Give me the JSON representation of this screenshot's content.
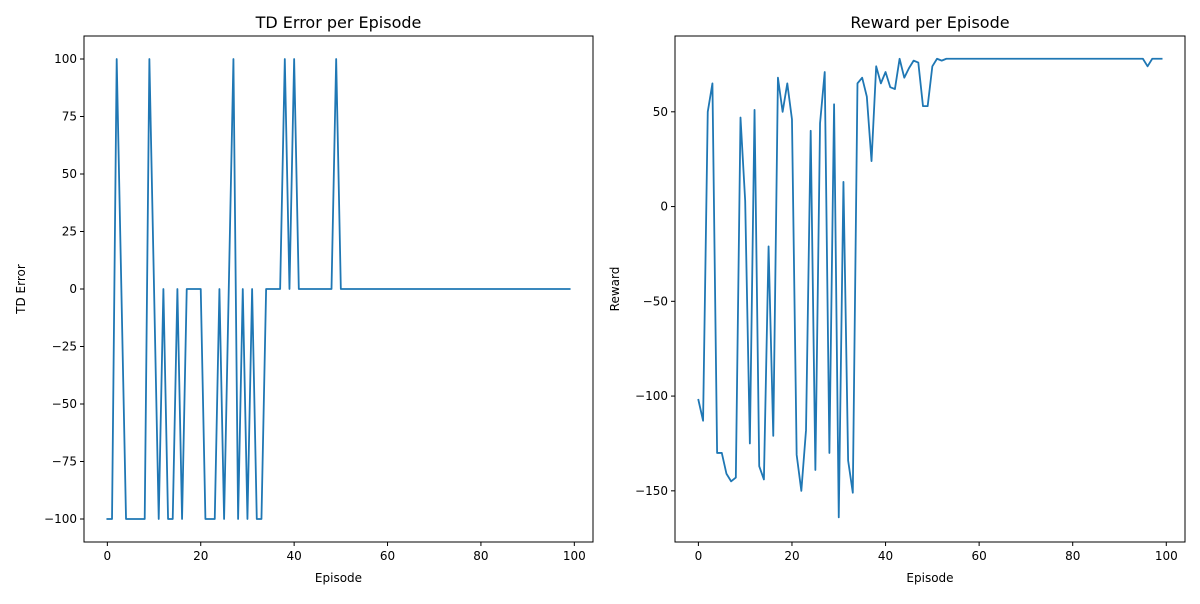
{
  "chart_data": [
    {
      "type": "line",
      "title": "TD Error per Episode",
      "xlabel": "Episode",
      "ylabel": "TD Error",
      "xlim": [
        -5,
        104
      ],
      "ylim": [
        -110,
        110
      ],
      "xticks": [
        0,
        20,
        40,
        60,
        80,
        100
      ],
      "yticks": [
        -100,
        -75,
        -50,
        -25,
        0,
        25,
        50,
        75,
        100
      ],
      "grid": false,
      "color": "#1f77b4",
      "series": [
        {
          "x": [
            0,
            1,
            2,
            3,
            4,
            5,
            6,
            7,
            8,
            9,
            10,
            11,
            12,
            13,
            14,
            15,
            16,
            17,
            18,
            19,
            20,
            21,
            22,
            23,
            24,
            25,
            26,
            27,
            28,
            29,
            30,
            31,
            32,
            33,
            34,
            35,
            36,
            37,
            38,
            39,
            40,
            41,
            42,
            43,
            44,
            45,
            46,
            47,
            48,
            49,
            50,
            51,
            52,
            53,
            54,
            55,
            56,
            57,
            58,
            59,
            60,
            61,
            62,
            63,
            64,
            65,
            66,
            67,
            68,
            69,
            70,
            71,
            72,
            73,
            74,
            75,
            76,
            77,
            78,
            79,
            80,
            81,
            82,
            83,
            84,
            85,
            86,
            87,
            88,
            89,
            90,
            91,
            92,
            93,
            94,
            95,
            96,
            97,
            98,
            99
          ],
          "y": [
            -100,
            -100,
            100,
            0,
            -100,
            -100,
            -100,
            -100,
            -100,
            100,
            0,
            -100,
            0,
            -100,
            -100,
            0,
            -100,
            0,
            0,
            0,
            0,
            -100,
            -100,
            -100,
            0,
            -100,
            0,
            100,
            -100,
            0,
            -100,
            0,
            -100,
            -100,
            0,
            0,
            0,
            0,
            100,
            0,
            100,
            0,
            0,
            0,
            0,
            0,
            0,
            0,
            0,
            100,
            0,
            0,
            0,
            0,
            0,
            0,
            0,
            0,
            0,
            0,
            0,
            0,
            0,
            0,
            0,
            0,
            0,
            0,
            0,
            0,
            0,
            0,
            0,
            0,
            0,
            0,
            0,
            0,
            0,
            0,
            0,
            0,
            0,
            0,
            0,
            0,
            0,
            0,
            0,
            0,
            0,
            0,
            0,
            0,
            0,
            0,
            0,
            0,
            0,
            0
          ]
        }
      ]
    },
    {
      "type": "line",
      "title": "Reward per Episode",
      "xlabel": "Episode",
      "ylabel": "Reward",
      "xlim": [
        -5,
        104
      ],
      "ylim": [
        -177,
        90
      ],
      "xticks": [
        0,
        20,
        40,
        60,
        80,
        100
      ],
      "yticks": [
        -150,
        -100,
        -50,
        0,
        50
      ],
      "grid": false,
      "color": "#1f77b4",
      "series": [
        {
          "x": [
            0,
            1,
            2,
            3,
            4,
            5,
            6,
            7,
            8,
            9,
            10,
            11,
            12,
            13,
            14,
            15,
            16,
            17,
            18,
            19,
            20,
            21,
            22,
            23,
            24,
            25,
            26,
            27,
            28,
            29,
            30,
            31,
            32,
            33,
            34,
            35,
            36,
            37,
            38,
            39,
            40,
            41,
            42,
            43,
            44,
            45,
            46,
            47,
            48,
            49,
            50,
            51,
            52,
            53,
            54,
            55,
            56,
            57,
            58,
            59,
            60,
            61,
            62,
            63,
            64,
            65,
            66,
            67,
            68,
            69,
            70,
            71,
            72,
            73,
            74,
            75,
            76,
            77,
            78,
            79,
            80,
            81,
            82,
            83,
            84,
            85,
            86,
            87,
            88,
            89,
            90,
            91,
            92,
            93,
            94,
            95,
            96,
            97,
            98,
            99
          ],
          "y": [
            -102,
            -113,
            50,
            65,
            -130,
            -130,
            -141,
            -145,
            -143,
            47,
            3,
            -125,
            51,
            -137,
            -144,
            -21,
            -121,
            68,
            50,
            65,
            46,
            -131,
            -150,
            -118,
            40,
            -139,
            44,
            71,
            -130,
            54,
            -164,
            13,
            -134,
            -151,
            65,
            68,
            58,
            24,
            74,
            65,
            71,
            63,
            62,
            78,
            68,
            73,
            77,
            76,
            53,
            53,
            74,
            78,
            77,
            78,
            78,
            78,
            78,
            78,
            78,
            78,
            78,
            78,
            78,
            78,
            78,
            78,
            78,
            78,
            78,
            78,
            78,
            78,
            78,
            78,
            78,
            78,
            78,
            78,
            78,
            78,
            78,
            78,
            78,
            78,
            78,
            78,
            78,
            78,
            78,
            78,
            78,
            78,
            78,
            78,
            78,
            78,
            74,
            78,
            78,
            78
          ]
        }
      ]
    }
  ]
}
